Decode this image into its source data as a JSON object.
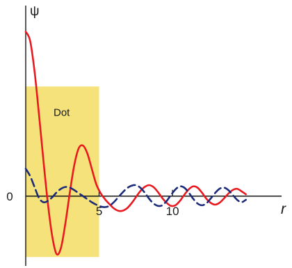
{
  "chart_data": {
    "type": "line",
    "ylabel": "ψ",
    "xlabel": "r",
    "xlim": [
      0,
      15.3
    ],
    "ylim": [
      -1.1,
      2.9
    ],
    "x_ticks": [
      {
        "value": 0,
        "label": "0",
        "axis": "y"
      },
      {
        "value": 5,
        "label": "5",
        "axis": "x"
      },
      {
        "value": 10,
        "label": "10",
        "axis": "x"
      }
    ],
    "region": {
      "label": "Dot",
      "x0": 0,
      "x1": 5,
      "y0": -1.0,
      "y1": 1.8,
      "color": "#f5e27a"
    },
    "grid": false,
    "series": [
      {
        "color": "#e8191f",
        "style": "solid",
        "x": [
          0,
          0.3,
          0.6,
          0.9,
          1.2,
          1.5,
          1.8,
          2.1,
          2.4,
          2.7,
          3.0,
          3.3,
          3.6,
          3.9,
          4.2,
          4.5,
          4.8,
          5.1,
          5.4,
          5.7,
          6.0,
          6.3,
          6.6,
          6.9,
          7.2,
          7.5,
          7.8,
          8.1,
          8.4,
          8.7,
          9.0,
          9.3,
          9.6,
          9.9,
          10.2,
          10.5,
          10.8,
          11.1,
          11.4,
          11.7,
          12.0,
          12.3,
          12.6,
          12.9,
          13.2,
          13.5,
          13.8,
          14.1,
          14.4,
          14.7,
          15.0
        ],
        "y": [
          2.7,
          2.55,
          2.05,
          1.35,
          0.6,
          -0.1,
          -0.65,
          -0.95,
          -0.85,
          -0.45,
          0.05,
          0.5,
          0.78,
          0.83,
          0.7,
          0.45,
          0.2,
          0.05,
          -0.05,
          -0.13,
          -0.2,
          -0.24,
          -0.24,
          -0.2,
          -0.12,
          -0.02,
          0.08,
          0.15,
          0.18,
          0.15,
          0.07,
          -0.03,
          -0.11,
          -0.16,
          -0.15,
          -0.08,
          0.02,
          0.11,
          0.16,
          0.14,
          0.06,
          -0.04,
          -0.11,
          -0.14,
          -0.11,
          -0.04,
          0.04,
          0.1,
          0.12,
          0.08,
          0.03
        ]
      },
      {
        "color": "#1c2a7a",
        "style": "dashed",
        "x": [
          0,
          0.3,
          0.6,
          0.9,
          1.2,
          1.5,
          1.8,
          2.1,
          2.4,
          2.7,
          3.0,
          3.3,
          3.6,
          3.9,
          4.2,
          4.5,
          4.8,
          5.1,
          5.4,
          5.7,
          6.0,
          6.3,
          6.6,
          6.9,
          7.2,
          7.5,
          7.8,
          8.1,
          8.4,
          8.7,
          9.0,
          9.3,
          9.6,
          9.9,
          10.2,
          10.5,
          10.8,
          11.1,
          11.4,
          11.7,
          12.0,
          12.3,
          12.6,
          12.9,
          13.2,
          13.5,
          13.8,
          14.1,
          14.4,
          14.7,
          15.0
        ],
        "y": [
          0.45,
          0.33,
          0.15,
          -0.03,
          -0.1,
          -0.08,
          -0.02,
          0.06,
          0.12,
          0.15,
          0.14,
          0.1,
          0.05,
          0.0,
          -0.05,
          -0.1,
          -0.14,
          -0.17,
          -0.18,
          -0.16,
          -0.1,
          -0.02,
          0.06,
          0.13,
          0.17,
          0.18,
          0.14,
          0.06,
          -0.04,
          -0.12,
          -0.16,
          -0.15,
          -0.08,
          0.02,
          0.11,
          0.16,
          0.14,
          0.06,
          -0.04,
          -0.12,
          -0.15,
          -0.12,
          -0.04,
          0.05,
          0.12,
          0.14,
          0.1,
          0.02,
          -0.06,
          -0.1,
          -0.06
        ]
      }
    ]
  }
}
